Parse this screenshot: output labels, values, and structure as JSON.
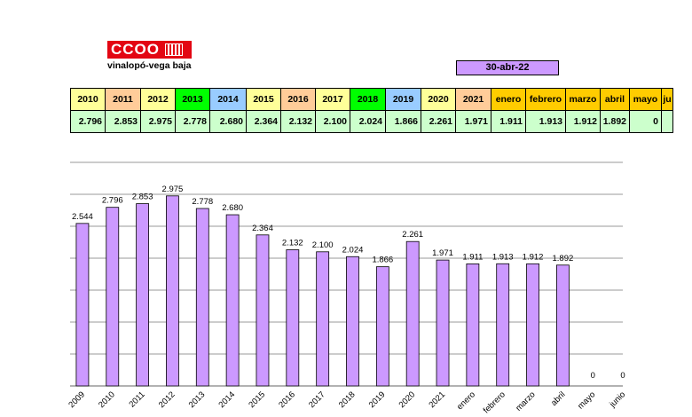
{
  "logo": {
    "brand": "CCOO",
    "region": "vinalopó-vega baja"
  },
  "date_label": "30-abr-22",
  "table": {
    "headers": [
      "2010",
      "2011",
      "2012",
      "2013",
      "2014",
      "2015",
      "2016",
      "2017",
      "2018",
      "2019",
      "2020",
      "2021",
      "enero",
      "febrero",
      "marzo",
      "abril",
      "mayo",
      "ju"
    ],
    "values": [
      "2.796",
      "2.853",
      "2.975",
      "2.778",
      "2.680",
      "2.364",
      "2.132",
      "2.100",
      "2.024",
      "1.866",
      "2.261",
      "1.971",
      "1.911",
      "1.913",
      "1.912",
      "1.892",
      "0",
      ""
    ],
    "colors": [
      "#ffff99",
      "#ffcc99",
      "#ffff99",
      "#00ff00",
      "#99ccff",
      "#ffff99",
      "#ffcc99",
      "#ffff99",
      "#00ff00",
      "#99ccff",
      "#ffff99",
      "#ffcc99",
      "#ffcc00",
      "#ffcc00",
      "#ffcc00",
      "#ffcc00",
      "#ffcc00",
      "#ffcc00"
    ]
  },
  "chart_data": {
    "type": "bar",
    "categories": [
      "2009",
      "2010",
      "2011",
      "2012",
      "2013",
      "2014",
      "2015",
      "2016",
      "2017",
      "2018",
      "2019",
      "2020",
      "2021",
      "enero",
      "febrero",
      "marzo",
      "abril",
      "mayo",
      "junio"
    ],
    "values": [
      2544,
      2796,
      2853,
      2975,
      2778,
      2680,
      2364,
      2132,
      2100,
      2024,
      1866,
      2261,
      1971,
      1911,
      1913,
      1912,
      1892,
      0,
      0
    ],
    "labels": [
      "2.544",
      "2.796",
      "2.853",
      "2.975",
      "2.778",
      "2.680",
      "2.364",
      "2.132",
      "2.100",
      "2.024",
      "1.866",
      "2.261",
      "1.971",
      "1.911",
      "1.913",
      "1.912",
      "1.892",
      "0",
      "0"
    ],
    "ylim": [
      0,
      3500
    ],
    "grid": true,
    "bar_color": "#cc99ff"
  }
}
